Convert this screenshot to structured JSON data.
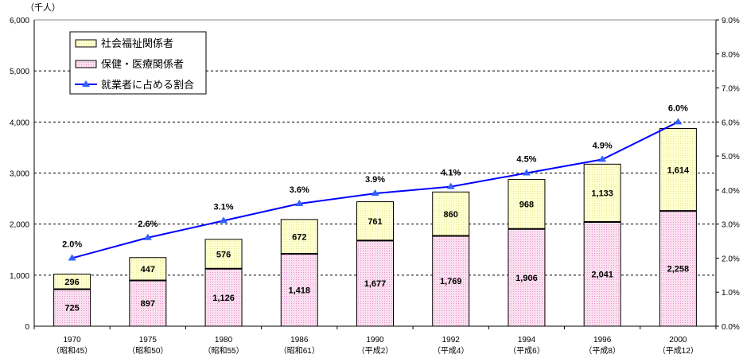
{
  "chart_data": {
    "type": "bar",
    "stacked": true,
    "unit_label": "（千人）",
    "categories": [
      "1970",
      "1975",
      "1980",
      "1986",
      "1990",
      "1992",
      "1994",
      "1996",
      "2000"
    ],
    "categories_sub": [
      "（昭和45）",
      "（昭和50）",
      "（昭和55）",
      "（昭和61）",
      "（平成2）",
      "（平成4）",
      "（平成6）",
      "（平成8）",
      "（平成12）"
    ],
    "series": [
      {
        "name": "保健・医療関係者",
        "values": [
          725,
          897,
          1126,
          1418,
          1677,
          1769,
          1906,
          2041,
          2258
        ],
        "labels": [
          "725",
          "897",
          "1,126",
          "1,418",
          "1,677",
          "1,769",
          "1,906",
          "2,041",
          "2,258"
        ],
        "color": "#f6c6e6"
      },
      {
        "name": "社会福祉関係者",
        "values": [
          296,
          447,
          576,
          672,
          761,
          860,
          968,
          1133,
          1614
        ],
        "labels": [
          "296",
          "447",
          "576",
          "672",
          "761",
          "860",
          "968",
          "1,133",
          "1,614"
        ],
        "color": "#ffffc0"
      }
    ],
    "line_series": {
      "name": "就業者に占める割合",
      "values": [
        2.0,
        2.6,
        3.1,
        3.6,
        3.9,
        4.1,
        4.5,
        4.9,
        6.0
      ],
      "labels": [
        "2.0%",
        "2.6%",
        "3.1%",
        "3.6%",
        "3.9%",
        "4.1%",
        "4.5%",
        "4.9%",
        "6.0%"
      ],
      "color": "#0000ff"
    },
    "legend_items": [
      "社会福祉関係者",
      "保健・医療関係者",
      "就業者に占める割合"
    ],
    "legend_position": "top-left",
    "ylim": [
      0,
      6000
    ],
    "yticks": [
      "0",
      "1,000",
      "2,000",
      "3,000",
      "4,000",
      "5,000",
      "6,000"
    ],
    "y2lim": [
      0,
      9
    ],
    "y2ticks": [
      "0.0%",
      "1.0%",
      "2.0%",
      "3.0%",
      "4.0%",
      "5.0%",
      "6.0%",
      "7.0%",
      "8.0%",
      "9.0%"
    ],
    "grid": true
  }
}
